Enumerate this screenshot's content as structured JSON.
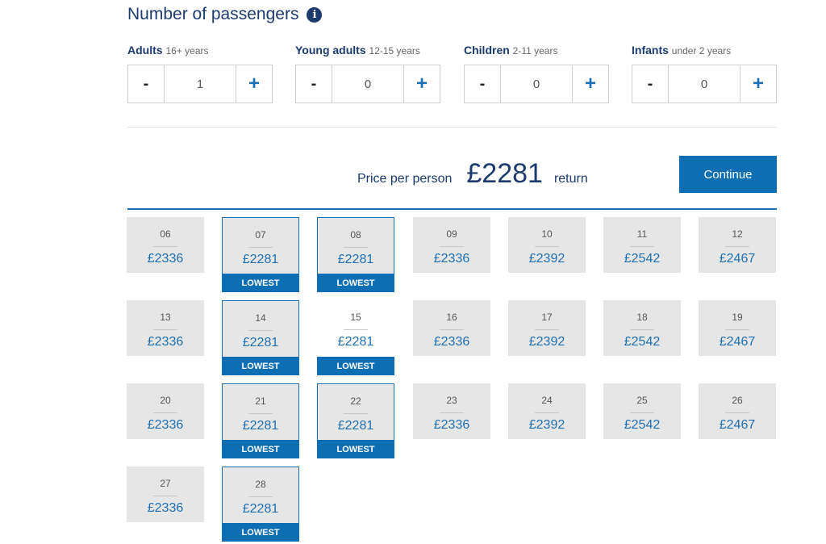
{
  "header": {
    "title": "Number of passengers",
    "info_icon": "info-icon"
  },
  "passengers": [
    {
      "key": "adults",
      "label": "Adults",
      "sub": "16+ years",
      "value": "1",
      "minus": "-",
      "plus": "+"
    },
    {
      "key": "young-adults",
      "label": "Young adults",
      "sub": "12-15 years",
      "value": "0",
      "minus": "-",
      "plus": "+"
    },
    {
      "key": "children",
      "label": "Children",
      "sub": "2-11 years",
      "value": "0",
      "minus": "-",
      "plus": "+"
    },
    {
      "key": "infants",
      "label": "Infants",
      "sub": "under 2 years",
      "value": "0",
      "minus": "-",
      "plus": "+"
    }
  ],
  "summary": {
    "label": "Price per person",
    "amount": "£2281",
    "suffix": "return",
    "continue_label": "Continue"
  },
  "calendar": {
    "badge_label": "LOWEST",
    "days": [
      {
        "day": "06",
        "price": "£2336",
        "lowest": false,
        "selected": false
      },
      {
        "day": "07",
        "price": "£2281",
        "lowest": true,
        "selected": false
      },
      {
        "day": "08",
        "price": "£2281",
        "lowest": true,
        "selected": false
      },
      {
        "day": "09",
        "price": "£2336",
        "lowest": false,
        "selected": false
      },
      {
        "day": "10",
        "price": "£2392",
        "lowest": false,
        "selected": false
      },
      {
        "day": "11",
        "price": "£2542",
        "lowest": false,
        "selected": false
      },
      {
        "day": "12",
        "price": "£2467",
        "lowest": false,
        "selected": false
      },
      {
        "day": "13",
        "price": "£2336",
        "lowest": false,
        "selected": false
      },
      {
        "day": "14",
        "price": "£2281",
        "lowest": true,
        "selected": false
      },
      {
        "day": "15",
        "price": "£2281",
        "lowest": true,
        "selected": true
      },
      {
        "day": "16",
        "price": "£2336",
        "lowest": false,
        "selected": false
      },
      {
        "day": "17",
        "price": "£2392",
        "lowest": false,
        "selected": false
      },
      {
        "day": "18",
        "price": "£2542",
        "lowest": false,
        "selected": false
      },
      {
        "day": "19",
        "price": "£2467",
        "lowest": false,
        "selected": false
      },
      {
        "day": "20",
        "price": "£2336",
        "lowest": false,
        "selected": false
      },
      {
        "day": "21",
        "price": "£2281",
        "lowest": true,
        "selected": false
      },
      {
        "day": "22",
        "price": "£2281",
        "lowest": true,
        "selected": false
      },
      {
        "day": "23",
        "price": "£2336",
        "lowest": false,
        "selected": false
      },
      {
        "day": "24",
        "price": "£2392",
        "lowest": false,
        "selected": false
      },
      {
        "day": "25",
        "price": "£2542",
        "lowest": false,
        "selected": false
      },
      {
        "day": "26",
        "price": "£2467",
        "lowest": false,
        "selected": false
      },
      {
        "day": "27",
        "price": "£2336",
        "lowest": false,
        "selected": false
      },
      {
        "day": "28",
        "price": "£2281",
        "lowest": true,
        "selected": false
      }
    ]
  },
  "colors": {
    "brand_blue": "#0e6eb3",
    "navy": "#1d3a6e",
    "cell_bg": "#e6e6e6"
  }
}
